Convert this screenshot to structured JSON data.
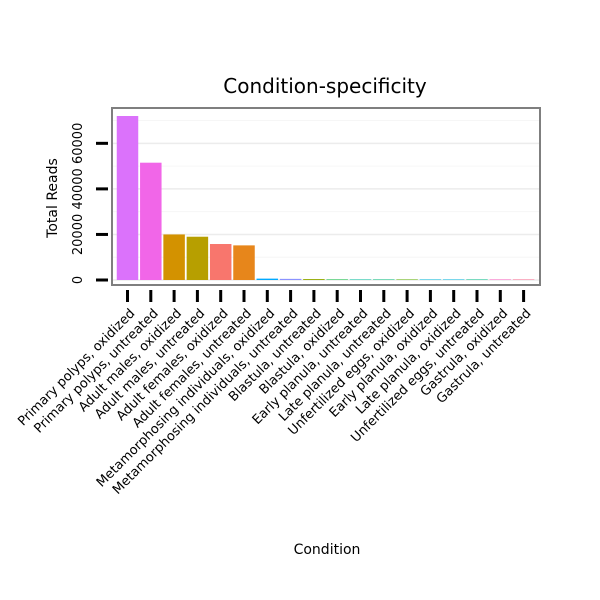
{
  "chart_data": {
    "type": "bar",
    "title": "Condition-specificity",
    "xlabel": "Condition",
    "ylabel": "Total Reads",
    "ylim": [
      0,
      72000
    ],
    "yticks": [
      0,
      20000,
      40000,
      60000
    ],
    "ytick_labels": [
      "0",
      "20000",
      "40000",
      "60000"
    ],
    "grid": true,
    "legend": "none",
    "categories": [
      "Primary polyps, oxidized",
      "Primary polyps, untreated",
      "Adult males, oxidized",
      "Adult males, untreated",
      "Adult females, oxidized",
      "Adult females, untreated",
      "Metamorphosing individuals, oxidized",
      "Metamorphosing individuals, untreated",
      "Blastula, untreated",
      "Blastula, oxidized",
      "Early planula, untreated",
      "Late planula, untreated",
      "Unfertilized eggs, oxidized",
      "Early planula, oxidized",
      "Late planula, oxidized",
      "Unfertilized eggs, untreated",
      "Gastrula, oxidized",
      "Gastrula, untreated"
    ],
    "values": [
      72000,
      51500,
      20000,
      19000,
      15800,
      15200,
      600,
      500,
      400,
      100,
      80,
      60,
      50,
      40,
      30,
      20,
      10,
      5
    ],
    "colors": [
      "#DB72FB",
      "#F166E8",
      "#D39200",
      "#B79F00",
      "#F8766D",
      "#E7861B",
      "#00A9FF",
      "#8B93FF",
      "#93AA00",
      "#00BA38",
      "#00C19F",
      "#00BF7D",
      "#5EB300",
      "#00BADE",
      "#00B9E3",
      "#00C08B",
      "#FF61C3",
      "#FF6C91"
    ]
  }
}
